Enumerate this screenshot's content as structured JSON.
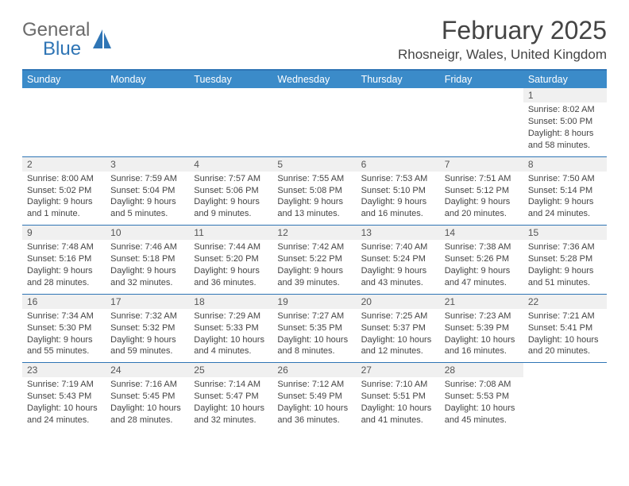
{
  "brand": {
    "name1": "General",
    "name2": "Blue",
    "accent": "#2f75b5",
    "text_color": "#6b6b6b"
  },
  "title": "February 2025",
  "location": "Rhosneigr, Wales, United Kingdom",
  "colors": {
    "header_bar": "#3b8bc9",
    "header_border": "#2f75b5",
    "row_sep": "#2f75b5",
    "daynum_bg": "#f0f0f0",
    "text": "#444444",
    "bg": "#ffffff"
  },
  "days_of_week": [
    "Sunday",
    "Monday",
    "Tuesday",
    "Wednesday",
    "Thursday",
    "Friday",
    "Saturday"
  ],
  "grid": {
    "rows": 5,
    "cols": 7,
    "first_weekday_index": 6,
    "days_in_month": 28
  },
  "days": {
    "1": {
      "sunrise": "8:02 AM",
      "sunset": "5:00 PM",
      "daylight": "8 hours and 58 minutes."
    },
    "2": {
      "sunrise": "8:00 AM",
      "sunset": "5:02 PM",
      "daylight": "9 hours and 1 minute."
    },
    "3": {
      "sunrise": "7:59 AM",
      "sunset": "5:04 PM",
      "daylight": "9 hours and 5 minutes."
    },
    "4": {
      "sunrise": "7:57 AM",
      "sunset": "5:06 PM",
      "daylight": "9 hours and 9 minutes."
    },
    "5": {
      "sunrise": "7:55 AM",
      "sunset": "5:08 PM",
      "daylight": "9 hours and 13 minutes."
    },
    "6": {
      "sunrise": "7:53 AM",
      "sunset": "5:10 PM",
      "daylight": "9 hours and 16 minutes."
    },
    "7": {
      "sunrise": "7:51 AM",
      "sunset": "5:12 PM",
      "daylight": "9 hours and 20 minutes."
    },
    "8": {
      "sunrise": "7:50 AM",
      "sunset": "5:14 PM",
      "daylight": "9 hours and 24 minutes."
    },
    "9": {
      "sunrise": "7:48 AM",
      "sunset": "5:16 PM",
      "daylight": "9 hours and 28 minutes."
    },
    "10": {
      "sunrise": "7:46 AM",
      "sunset": "5:18 PM",
      "daylight": "9 hours and 32 minutes."
    },
    "11": {
      "sunrise": "7:44 AM",
      "sunset": "5:20 PM",
      "daylight": "9 hours and 36 minutes."
    },
    "12": {
      "sunrise": "7:42 AM",
      "sunset": "5:22 PM",
      "daylight": "9 hours and 39 minutes."
    },
    "13": {
      "sunrise": "7:40 AM",
      "sunset": "5:24 PM",
      "daylight": "9 hours and 43 minutes."
    },
    "14": {
      "sunrise": "7:38 AM",
      "sunset": "5:26 PM",
      "daylight": "9 hours and 47 minutes."
    },
    "15": {
      "sunrise": "7:36 AM",
      "sunset": "5:28 PM",
      "daylight": "9 hours and 51 minutes."
    },
    "16": {
      "sunrise": "7:34 AM",
      "sunset": "5:30 PM",
      "daylight": "9 hours and 55 minutes."
    },
    "17": {
      "sunrise": "7:32 AM",
      "sunset": "5:32 PM",
      "daylight": "9 hours and 59 minutes."
    },
    "18": {
      "sunrise": "7:29 AM",
      "sunset": "5:33 PM",
      "daylight": "10 hours and 4 minutes."
    },
    "19": {
      "sunrise": "7:27 AM",
      "sunset": "5:35 PM",
      "daylight": "10 hours and 8 minutes."
    },
    "20": {
      "sunrise": "7:25 AM",
      "sunset": "5:37 PM",
      "daylight": "10 hours and 12 minutes."
    },
    "21": {
      "sunrise": "7:23 AM",
      "sunset": "5:39 PM",
      "daylight": "10 hours and 16 minutes."
    },
    "22": {
      "sunrise": "7:21 AM",
      "sunset": "5:41 PM",
      "daylight": "10 hours and 20 minutes."
    },
    "23": {
      "sunrise": "7:19 AM",
      "sunset": "5:43 PM",
      "daylight": "10 hours and 24 minutes."
    },
    "24": {
      "sunrise": "7:16 AM",
      "sunset": "5:45 PM",
      "daylight": "10 hours and 28 minutes."
    },
    "25": {
      "sunrise": "7:14 AM",
      "sunset": "5:47 PM",
      "daylight": "10 hours and 32 minutes."
    },
    "26": {
      "sunrise": "7:12 AM",
      "sunset": "5:49 PM",
      "daylight": "10 hours and 36 minutes."
    },
    "27": {
      "sunrise": "7:10 AM",
      "sunset": "5:51 PM",
      "daylight": "10 hours and 41 minutes."
    },
    "28": {
      "sunrise": "7:08 AM",
      "sunset": "5:53 PM",
      "daylight": "10 hours and 45 minutes."
    }
  },
  "labels": {
    "sunrise": "Sunrise:",
    "sunset": "Sunset:",
    "daylight": "Daylight:"
  },
  "typography": {
    "title_pt": 32,
    "location_pt": 17,
    "dow_pt": 12.5,
    "cell_pt": 11
  }
}
